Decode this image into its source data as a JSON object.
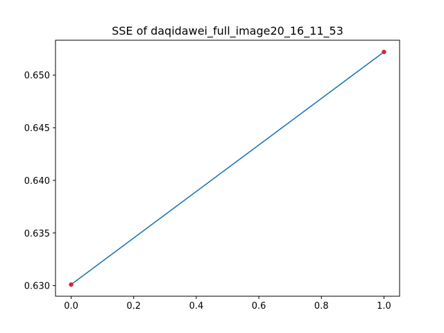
{
  "chart_data": {
    "type": "line",
    "title": "SSE of daqidawei_full_image20_16_11_53",
    "xlabel": "",
    "ylabel": "",
    "x": [
      0.0,
      1.0
    ],
    "series": [
      {
        "values": [
          0.6301,
          0.6522
        ],
        "line_color": "#1f77b4",
        "marker_color": "#d62728"
      }
    ],
    "xlim": [
      -0.05,
      1.05
    ],
    "ylim": [
      0.62899,
      0.65331
    ],
    "x_ticks": [
      0.0,
      0.2,
      0.4,
      0.6,
      0.8,
      1.0
    ],
    "x_tick_labels": [
      "0.0",
      "0.2",
      "0.4",
      "0.6",
      "0.8",
      "1.0"
    ],
    "y_ticks": [
      0.63,
      0.635,
      0.64,
      0.645,
      0.65
    ],
    "y_tick_labels": [
      "0.630",
      "0.635",
      "0.640",
      "0.645",
      "0.650"
    ],
    "grid": false,
    "legend": "none"
  }
}
